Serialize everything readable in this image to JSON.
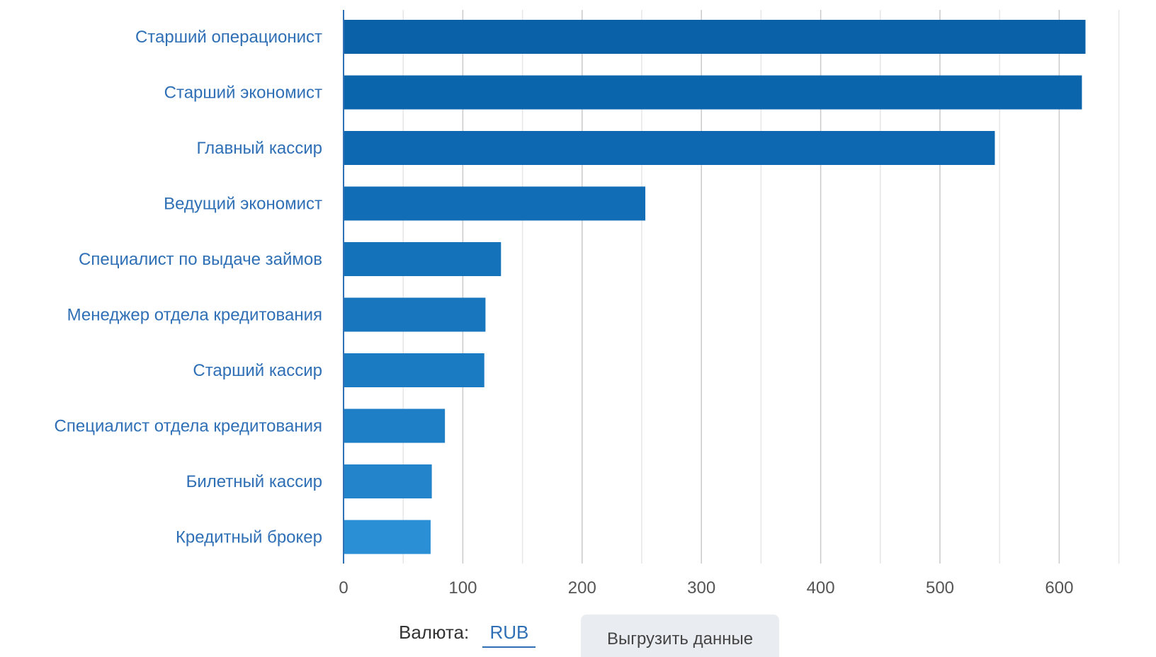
{
  "chart_data": {
    "type": "bar",
    "orientation": "horizontal",
    "categories": [
      "Старший операционист",
      "Старший экономист",
      "Главный кассир",
      "Ведущий экономист",
      "Специалист по выдаче займов",
      "Менеджер отдела кредитования",
      "Старший кассир",
      "Специалист отдела кредитования",
      "Билетный кассир",
      "Кредитный брокер"
    ],
    "values": [
      622,
      619,
      546,
      253,
      132,
      119,
      118,
      85,
      74,
      73
    ],
    "xlim": [
      0,
      650
    ],
    "xticks": [
      0,
      100,
      200,
      300,
      400,
      500,
      600
    ],
    "grid": true,
    "bar_colors": [
      "#0a61a8",
      "#0b65ad",
      "#0d68b1",
      "#116db5",
      "#1472ba",
      "#1776be",
      "#1a7ac2",
      "#1e7fc6",
      "#2384cb",
      "#2b8fd6"
    ]
  },
  "footer": {
    "currency_label": "Валюта:",
    "currency_value": "RUB",
    "export_label": "Выгрузить данные"
  }
}
